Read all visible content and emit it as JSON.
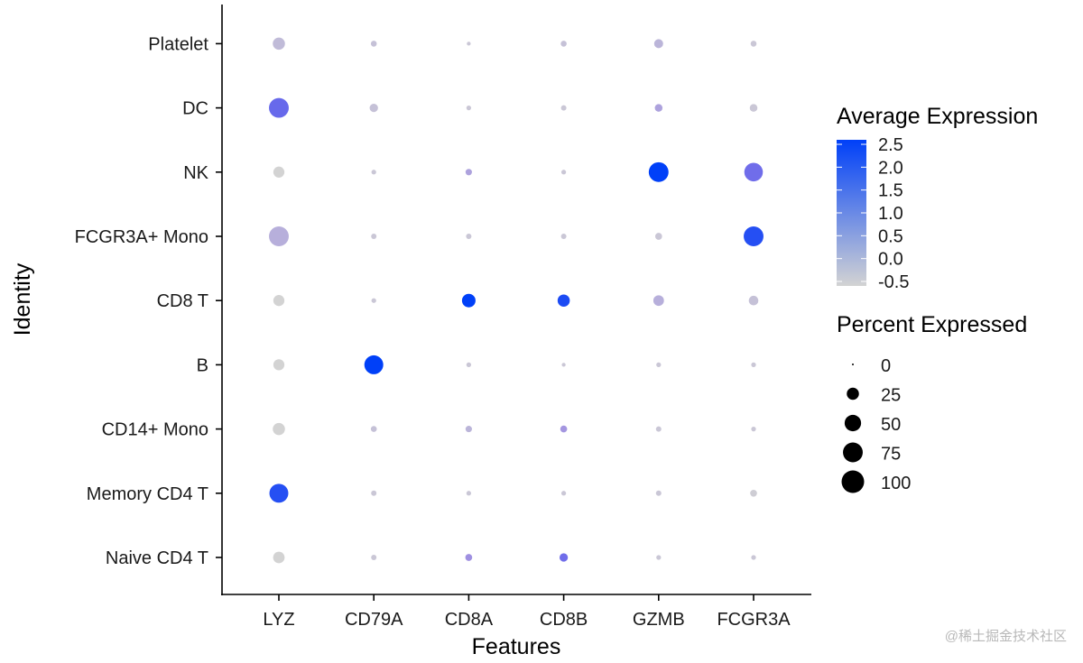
{
  "chart_data": {
    "type": "scatter",
    "subtype": "dot-plot",
    "xlabel": "Features",
    "ylabel": "Identity",
    "features": [
      "LYZ",
      "CD79A",
      "CD8A",
      "CD8B",
      "GZMB",
      "FCGR3A"
    ],
    "identities": [
      "Naive CD4 T",
      "Memory CD4 T",
      "CD14+ Mono",
      "B",
      "CD8 T",
      "FCGR3A+ Mono",
      "NK",
      "DC",
      "Platelet"
    ],
    "grid": false,
    "color_legend": {
      "title": "Average Expression",
      "ticks": [
        "2.5",
        "2.0",
        "1.5",
        "1.0",
        "0.5",
        "0.0",
        "-0.5"
      ],
      "range": [
        -0.5,
        2.5
      ],
      "low_color": "#d3d3d3",
      "high_color": "#0040f8",
      "placement": "right"
    },
    "size_legend": {
      "title": "Percent Expressed",
      "values": [
        0,
        25,
        50,
        75,
        100
      ],
      "labels": [
        "0",
        "25",
        "50",
        "75",
        "100"
      ],
      "placement": "right"
    },
    "points": [
      {
        "identity": "Naive CD4 T",
        "feature": "LYZ",
        "pct": 22,
        "avg": -0.5
      },
      {
        "identity": "Naive CD4 T",
        "feature": "CD79A",
        "pct": 3,
        "avg": -0.3
      },
      {
        "identity": "Naive CD4 T",
        "feature": "CD8A",
        "pct": 6,
        "avg": 0.6
      },
      {
        "identity": "Naive CD4 T",
        "feature": "CD8B",
        "pct": 10,
        "avg": 1.3
      },
      {
        "identity": "Naive CD4 T",
        "feature": "GZMB",
        "pct": 2,
        "avg": -0.3
      },
      {
        "identity": "Naive CD4 T",
        "feature": "FCGR3A",
        "pct": 2,
        "avg": -0.3
      },
      {
        "identity": "Memory CD4 T",
        "feature": "LYZ",
        "pct": 68,
        "avg": 2.1
      },
      {
        "identity": "Memory CD4 T",
        "feature": "CD79A",
        "pct": 3,
        "avg": -0.3
      },
      {
        "identity": "Memory CD4 T",
        "feature": "CD8A",
        "pct": 2,
        "avg": -0.3
      },
      {
        "identity": "Memory CD4 T",
        "feature": "CD8B",
        "pct": 2,
        "avg": -0.3
      },
      {
        "identity": "Memory CD4 T",
        "feature": "GZMB",
        "pct": 3,
        "avg": -0.3
      },
      {
        "identity": "Memory CD4 T",
        "feature": "FCGR3A",
        "pct": 6,
        "avg": -0.4
      },
      {
        "identity": "CD14+ Mono",
        "feature": "LYZ",
        "pct": 25,
        "avg": -0.5
      },
      {
        "identity": "CD14+ Mono",
        "feature": "CD79A",
        "pct": 4,
        "avg": -0.2
      },
      {
        "identity": "CD14+ Mono",
        "feature": "CD8A",
        "pct": 5,
        "avg": 0.0
      },
      {
        "identity": "CD14+ Mono",
        "feature": "CD8B",
        "pct": 6,
        "avg": 0.5
      },
      {
        "identity": "CD14+ Mono",
        "feature": "GZMB",
        "pct": 3,
        "avg": -0.3
      },
      {
        "identity": "CD14+ Mono",
        "feature": "FCGR3A",
        "pct": 2,
        "avg": -0.3
      },
      {
        "identity": "B",
        "feature": "LYZ",
        "pct": 20,
        "avg": -0.5
      },
      {
        "identity": "B",
        "feature": "CD79A",
        "pct": 68,
        "avg": 2.5
      },
      {
        "identity": "B",
        "feature": "CD8A",
        "pct": 2,
        "avg": -0.3
      },
      {
        "identity": "B",
        "feature": "CD8B",
        "pct": 1,
        "avg": -0.3
      },
      {
        "identity": "B",
        "feature": "GZMB",
        "pct": 2,
        "avg": -0.3
      },
      {
        "identity": "B",
        "feature": "FCGR3A",
        "pct": 2,
        "avg": -0.3
      },
      {
        "identity": "CD8 T",
        "feature": "LYZ",
        "pct": 20,
        "avg": -0.5
      },
      {
        "identity": "CD8 T",
        "feature": "CD79A",
        "pct": 2,
        "avg": -0.3
      },
      {
        "identity": "CD8 T",
        "feature": "CD8A",
        "pct": 32,
        "avg": 2.5
      },
      {
        "identity": "CD8 T",
        "feature": "CD8B",
        "pct": 25,
        "avg": 2.2
      },
      {
        "identity": "CD8 T",
        "feature": "GZMB",
        "pct": 18,
        "avg": 0.1
      },
      {
        "identity": "CD8 T",
        "feature": "FCGR3A",
        "pct": 14,
        "avg": -0.2
      },
      {
        "identity": "FCGR3A+ Mono",
        "feature": "LYZ",
        "pct": 75,
        "avg": 0.1
      },
      {
        "identity": "FCGR3A+ Mono",
        "feature": "CD79A",
        "pct": 3,
        "avg": -0.3
      },
      {
        "identity": "FCGR3A+ Mono",
        "feature": "CD8A",
        "pct": 3,
        "avg": -0.3
      },
      {
        "identity": "FCGR3A+ Mono",
        "feature": "CD8B",
        "pct": 3,
        "avg": -0.3
      },
      {
        "identity": "FCGR3A+ Mono",
        "feature": "GZMB",
        "pct": 6,
        "avg": -0.3
      },
      {
        "identity": "FCGR3A+ Mono",
        "feature": "FCGR3A",
        "pct": 75,
        "avg": 2.1
      },
      {
        "identity": "NK",
        "feature": "LYZ",
        "pct": 20,
        "avg": -0.5
      },
      {
        "identity": "NK",
        "feature": "CD79A",
        "pct": 2,
        "avg": -0.3
      },
      {
        "identity": "NK",
        "feature": "CD8A",
        "pct": 5,
        "avg": 0.3
      },
      {
        "identity": "NK",
        "feature": "CD8B",
        "pct": 2,
        "avg": -0.3
      },
      {
        "identity": "NK",
        "feature": "GZMB",
        "pct": 75,
        "avg": 2.5
      },
      {
        "identity": "NK",
        "feature": "FCGR3A",
        "pct": 65,
        "avg": 1.3
      },
      {
        "identity": "DC",
        "feature": "LYZ",
        "pct": 75,
        "avg": 1.4
      },
      {
        "identity": "DC",
        "feature": "CD79A",
        "pct": 10,
        "avg": -0.2
      },
      {
        "identity": "DC",
        "feature": "CD8A",
        "pct": 2,
        "avg": -0.3
      },
      {
        "identity": "DC",
        "feature": "CD8B",
        "pct": 3,
        "avg": -0.3
      },
      {
        "identity": "DC",
        "feature": "GZMB",
        "pct": 8,
        "avg": 0.3
      },
      {
        "identity": "DC",
        "feature": "FCGR3A",
        "pct": 8,
        "avg": -0.3
      },
      {
        "identity": "Platelet",
        "feature": "LYZ",
        "pct": 25,
        "avg": -0.1
      },
      {
        "identity": "Platelet",
        "feature": "CD79A",
        "pct": 4,
        "avg": -0.2
      },
      {
        "identity": "Platelet",
        "feature": "CD8A",
        "pct": 1,
        "avg": -0.3
      },
      {
        "identity": "Platelet",
        "feature": "CD8B",
        "pct": 4,
        "avg": -0.2
      },
      {
        "identity": "Platelet",
        "feature": "GZMB",
        "pct": 12,
        "avg": 0.0
      },
      {
        "identity": "Platelet",
        "feature": "FCGR3A",
        "pct": 4,
        "avg": -0.3
      }
    ]
  },
  "watermark": "@稀土掘金技术社区"
}
